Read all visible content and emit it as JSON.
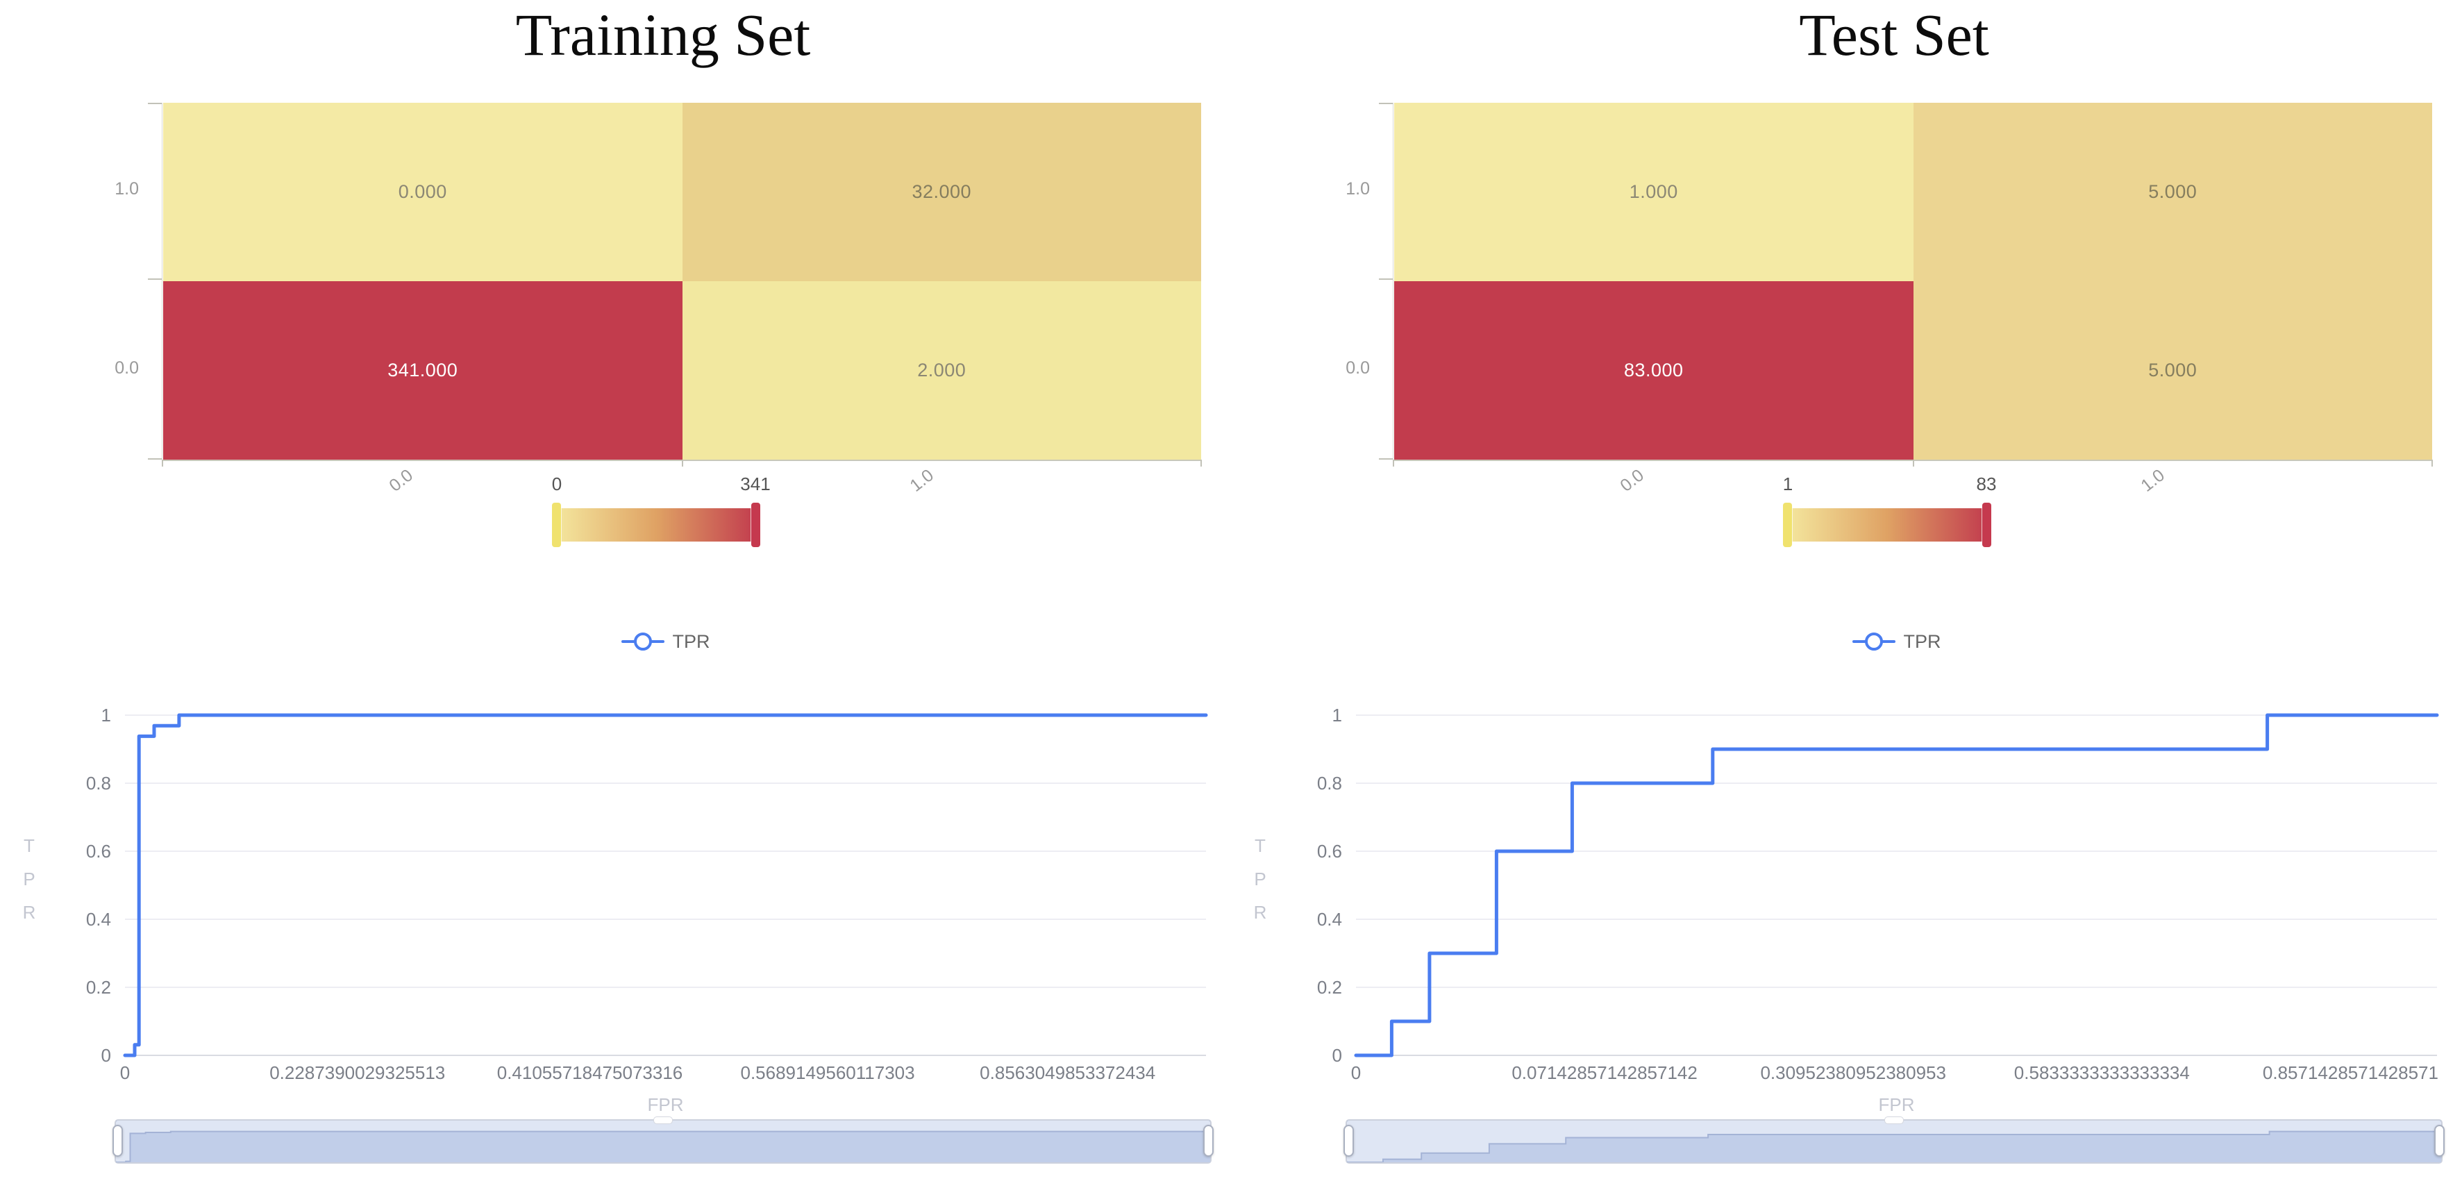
{
  "colors": {
    "roc_line": "#4a7df0",
    "legend_text": "#666666",
    "colorbar_stops": [
      "#f4e79e",
      "#dfa264",
      "#c23c4e"
    ],
    "colorbar_handle_left": "#f0e26e",
    "colorbar_handle_right": "#c5394e",
    "slider_fill": "rgba(135,163,214,0.25)",
    "slider_shadow_fill": "#d5dcef",
    "slider_shadow_line": "#aeb9d6",
    "heat_min": "#f3e9a2",
    "heat_mid": "#ecd592",
    "heat_max": "#c23c4d"
  },
  "chart_data": [
    {
      "id": "train_confusion_matrix",
      "type": "heatmap",
      "title": "Training Set",
      "x": [
        "0.0",
        "1.0"
      ],
      "y": [
        "1.0",
        "0.0"
      ],
      "values": [
        [
          0,
          32
        ],
        [
          341,
          2
        ]
      ],
      "rows": [
        {
          "cells": [
            {
              "label": "0.000",
              "value": 0,
              "color": "#f4eaa5",
              "text": "#8b8774"
            },
            {
              "label": "32.000",
              "value": 32,
              "color": "#e9d18c",
              "text": "#857d5e"
            }
          ]
        },
        {
          "cells": [
            {
              "label": "341.000",
              "value": 341,
              "color": "#c23c4d",
              "text": "#ffffff"
            },
            {
              "label": "2.000",
              "value": 2,
              "color": "#f2e8a0",
              "text": "#8b8774"
            }
          ]
        }
      ],
      "colorbar": {
        "min": "0",
        "max": "341"
      }
    },
    {
      "id": "train_roc",
      "type": "line",
      "legend": "TPR",
      "xlabel": "FPR",
      "ylabel": "TPR",
      "ylim": [
        0,
        1
      ],
      "grid": true,
      "y_ticks": [
        "1",
        "0.8",
        "0.6",
        "0.4",
        "0.2",
        "0"
      ],
      "x_ticks": [
        {
          "label": "0",
          "pos": 0
        },
        {
          "label": "0.2287390029325513",
          "pos": 0.215
        },
        {
          "label": "0.41055718475073316",
          "pos": 0.43
        },
        {
          "label": "0.5689149560117303",
          "pos": 0.65
        },
        {
          "label": "0.8563049853372434",
          "pos": 0.872
        }
      ],
      "points": [
        [
          0,
          0
        ],
        [
          0.009,
          0
        ],
        [
          0.009,
          0.031
        ],
        [
          0.013,
          0.031
        ],
        [
          0.013,
          0.938
        ],
        [
          0.027,
          0.938
        ],
        [
          0.027,
          0.969
        ],
        [
          0.05,
          0.969
        ],
        [
          0.05,
          1
        ],
        [
          1,
          1
        ]
      ]
    },
    {
      "id": "test_confusion_matrix",
      "type": "heatmap",
      "title": "Test Set",
      "x": [
        "0.0",
        "1.0"
      ],
      "y": [
        "1.0",
        "0.0"
      ],
      "values": [
        [
          1,
          5
        ],
        [
          83,
          5
        ]
      ],
      "rows": [
        {
          "cells": [
            {
              "label": "1.000",
              "value": 1,
              "color": "#f4eaa5",
              "text": "#8b8774"
            },
            {
              "label": "5.000",
              "value": 5,
              "color": "#ecd592",
              "text": "#857d5e"
            }
          ]
        },
        {
          "cells": [
            {
              "label": "83.000",
              "value": 83,
              "color": "#c23c4d",
              "text": "#ffffff"
            },
            {
              "label": "5.000",
              "value": 5,
              "color": "#ecd592",
              "text": "#857d5e"
            }
          ]
        }
      ],
      "colorbar": {
        "min": "1",
        "max": "83"
      }
    },
    {
      "id": "test_roc",
      "type": "line",
      "legend": "TPR",
      "xlabel": "FPR",
      "ylabel": "TPR",
      "ylim": [
        0,
        1
      ],
      "grid": true,
      "y_ticks": [
        "1",
        "0.8",
        "0.6",
        "0.4",
        "0.2",
        "0"
      ],
      "x_ticks": [
        {
          "label": "0",
          "pos": 0
        },
        {
          "label": "0.07142857142857142",
          "pos": 0.23
        },
        {
          "label": "0.30952380952380953",
          "pos": 0.46
        },
        {
          "label": "0.5833333333333334",
          "pos": 0.69
        },
        {
          "label": "0.8571428571428571",
          "pos": 0.92
        }
      ],
      "points": [
        [
          0,
          0
        ],
        [
          0.033,
          0
        ],
        [
          0.033,
          0.1
        ],
        [
          0.068,
          0.1
        ],
        [
          0.068,
          0.3
        ],
        [
          0.13,
          0.3
        ],
        [
          0.13,
          0.6
        ],
        [
          0.2,
          0.6
        ],
        [
          0.2,
          0.8
        ],
        [
          0.33,
          0.8
        ],
        [
          0.33,
          0.9
        ],
        [
          0.843,
          0.9
        ],
        [
          0.843,
          1
        ],
        [
          1,
          1
        ]
      ]
    }
  ]
}
